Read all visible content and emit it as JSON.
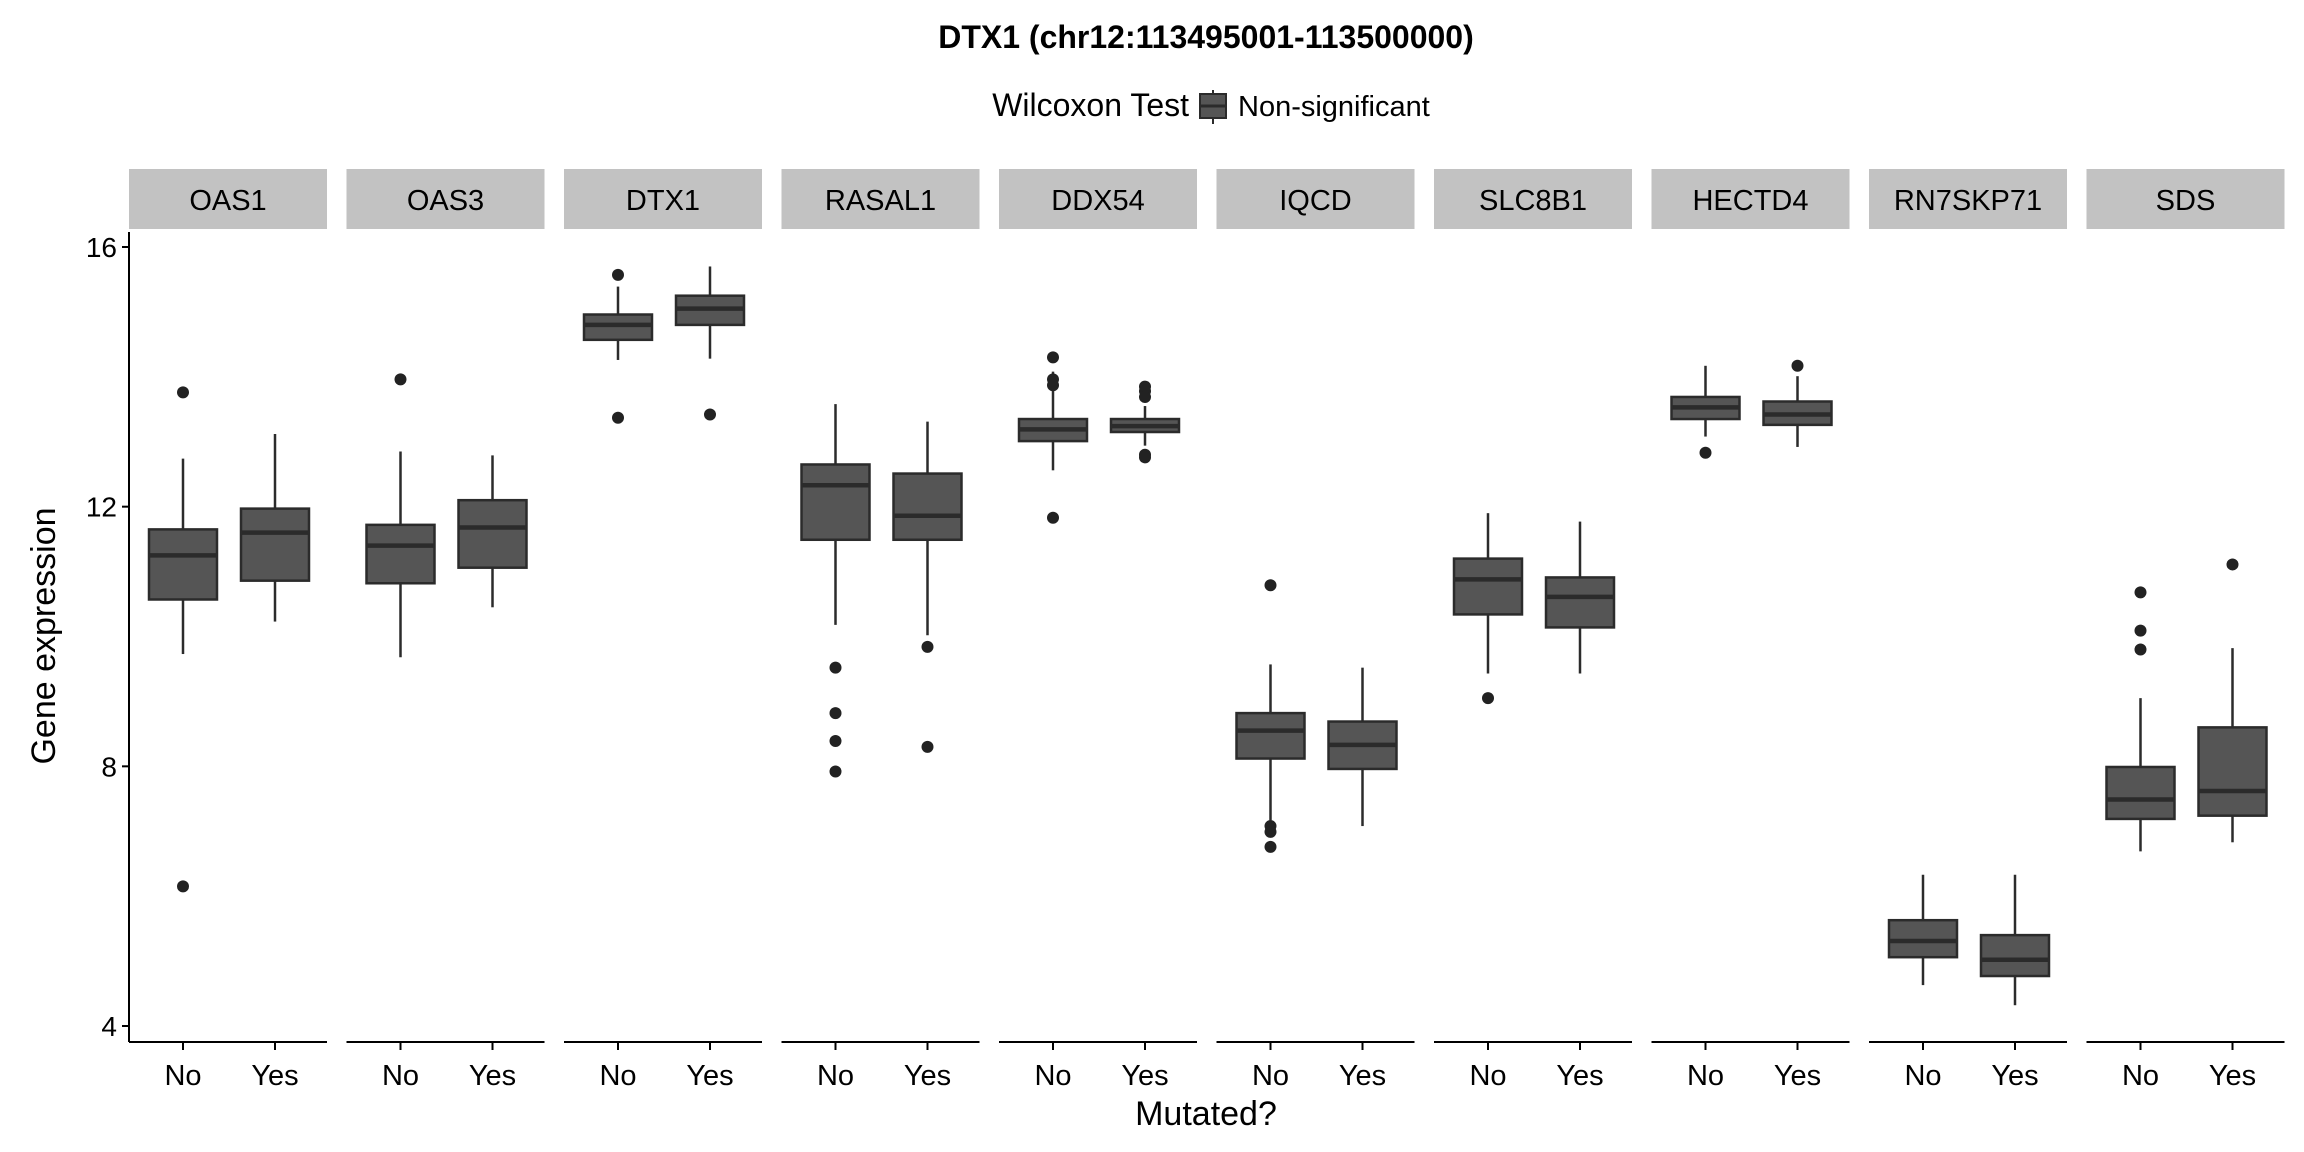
{
  "chart_data": {
    "type": "boxplot",
    "title": "DTX1 (chr12:113495001-113500000)",
    "legend": {
      "title": "Wilcoxon Test",
      "entries": [
        "Non-significant"
      ],
      "placement": "top",
      "fill": "#555555"
    },
    "xlabel": "Mutated?",
    "ylabel": "Gene expression",
    "ylim": [
      3.7,
      16.2
    ],
    "yticks": [
      4,
      8,
      12,
      16
    ],
    "categories": [
      "No",
      "Yes"
    ],
    "colors": {
      "box_fill": "#555555",
      "box_stroke": "#2b2b2b",
      "strip_bg": "#c2c2c2"
    },
    "panels": [
      {
        "gene": "OAS1",
        "boxes": [
          {
            "group": "No",
            "lower": 9.73,
            "q1": 10.57,
            "median": 11.25,
            "q3": 11.65,
            "upper": 12.74,
            "outliers": [
              13.76,
              6.15
            ]
          },
          {
            "group": "Yes",
            "lower": 10.23,
            "q1": 10.86,
            "median": 11.6,
            "q3": 11.97,
            "upper": 13.12,
            "outliers": []
          }
        ]
      },
      {
        "gene": "OAS3",
        "boxes": [
          {
            "group": "No",
            "lower": 9.68,
            "q1": 10.82,
            "median": 11.4,
            "q3": 11.72,
            "upper": 12.85,
            "outliers": [
              13.96
            ]
          },
          {
            "group": "Yes",
            "lower": 10.45,
            "q1": 11.06,
            "median": 11.68,
            "q3": 12.1,
            "upper": 12.79,
            "outliers": []
          }
        ]
      },
      {
        "gene": "DTX1",
        "boxes": [
          {
            "group": "No",
            "lower": 14.26,
            "q1": 14.57,
            "median": 14.8,
            "q3": 14.96,
            "upper": 15.39,
            "outliers": [
              15.57,
              13.37
            ]
          },
          {
            "group": "Yes",
            "lower": 14.28,
            "q1": 14.8,
            "median": 15.05,
            "q3": 15.25,
            "upper": 15.7,
            "outliers": [
              13.42
            ]
          }
        ]
      },
      {
        "gene": "RASAL1",
        "boxes": [
          {
            "group": "No",
            "lower": 10.18,
            "q1": 11.49,
            "median": 12.33,
            "q3": 12.65,
            "upper": 13.58,
            "outliers": [
              9.52,
              8.82,
              8.39,
              7.92
            ]
          },
          {
            "group": "Yes",
            "lower": 10.02,
            "q1": 11.49,
            "median": 11.86,
            "q3": 12.51,
            "upper": 13.31,
            "outliers": [
              9.84,
              8.3
            ]
          }
        ]
      },
      {
        "gene": "DDX54",
        "boxes": [
          {
            "group": "No",
            "lower": 12.56,
            "q1": 13.01,
            "median": 13.19,
            "q3": 13.35,
            "upper": 14.08,
            "outliers": [
              14.3,
              13.96,
              13.87,
              11.83
            ]
          },
          {
            "group": "Yes",
            "lower": 12.94,
            "q1": 13.15,
            "median": 13.24,
            "q3": 13.35,
            "upper": 13.55,
            "outliers": [
              13.85,
              13.78,
              13.69,
              12.8,
              12.76
            ]
          }
        ]
      },
      {
        "gene": "IQCD",
        "boxes": [
          {
            "group": "No",
            "lower": 7.17,
            "q1": 8.12,
            "median": 8.55,
            "q3": 8.82,
            "upper": 9.57,
            "outliers": [
              10.79,
              7.08,
              6.99,
              6.76
            ]
          },
          {
            "group": "Yes",
            "lower": 7.08,
            "q1": 7.96,
            "median": 8.33,
            "q3": 8.69,
            "upper": 9.52,
            "outliers": []
          }
        ]
      },
      {
        "gene": "SLC8B1",
        "boxes": [
          {
            "group": "No",
            "lower": 9.43,
            "q1": 10.34,
            "median": 10.88,
            "q3": 11.2,
            "upper": 11.9,
            "outliers": [
              9.05
            ]
          },
          {
            "group": "Yes",
            "lower": 9.43,
            "q1": 10.14,
            "median": 10.61,
            "q3": 10.91,
            "upper": 11.77,
            "outliers": []
          }
        ]
      },
      {
        "gene": "HECTD4",
        "boxes": [
          {
            "group": "No",
            "lower": 13.08,
            "q1": 13.35,
            "median": 13.53,
            "q3": 13.69,
            "upper": 14.17,
            "outliers": [
              12.83
            ]
          },
          {
            "group": "Yes",
            "lower": 12.92,
            "q1": 13.26,
            "median": 13.42,
            "q3": 13.62,
            "upper": 14.01,
            "outliers": [
              14.17
            ]
          }
        ]
      },
      {
        "gene": "RN7SKP71",
        "boxes": [
          {
            "group": "No",
            "lower": 4.63,
            "q1": 5.06,
            "median": 5.31,
            "q3": 5.63,
            "upper": 6.33,
            "outliers": []
          },
          {
            "group": "Yes",
            "lower": 4.32,
            "q1": 4.77,
            "median": 5.02,
            "q3": 5.4,
            "upper": 6.33,
            "outliers": []
          }
        ]
      },
      {
        "gene": "SDS",
        "boxes": [
          {
            "group": "No",
            "lower": 6.69,
            "q1": 7.19,
            "median": 7.49,
            "q3": 7.99,
            "upper": 9.05,
            "outliers": [
              10.68,
              10.09,
              9.8
            ]
          },
          {
            "group": "Yes",
            "lower": 6.83,
            "q1": 7.24,
            "median": 7.62,
            "q3": 8.6,
            "upper": 9.82,
            "outliers": [
              11.11
            ]
          }
        ]
      }
    ]
  }
}
